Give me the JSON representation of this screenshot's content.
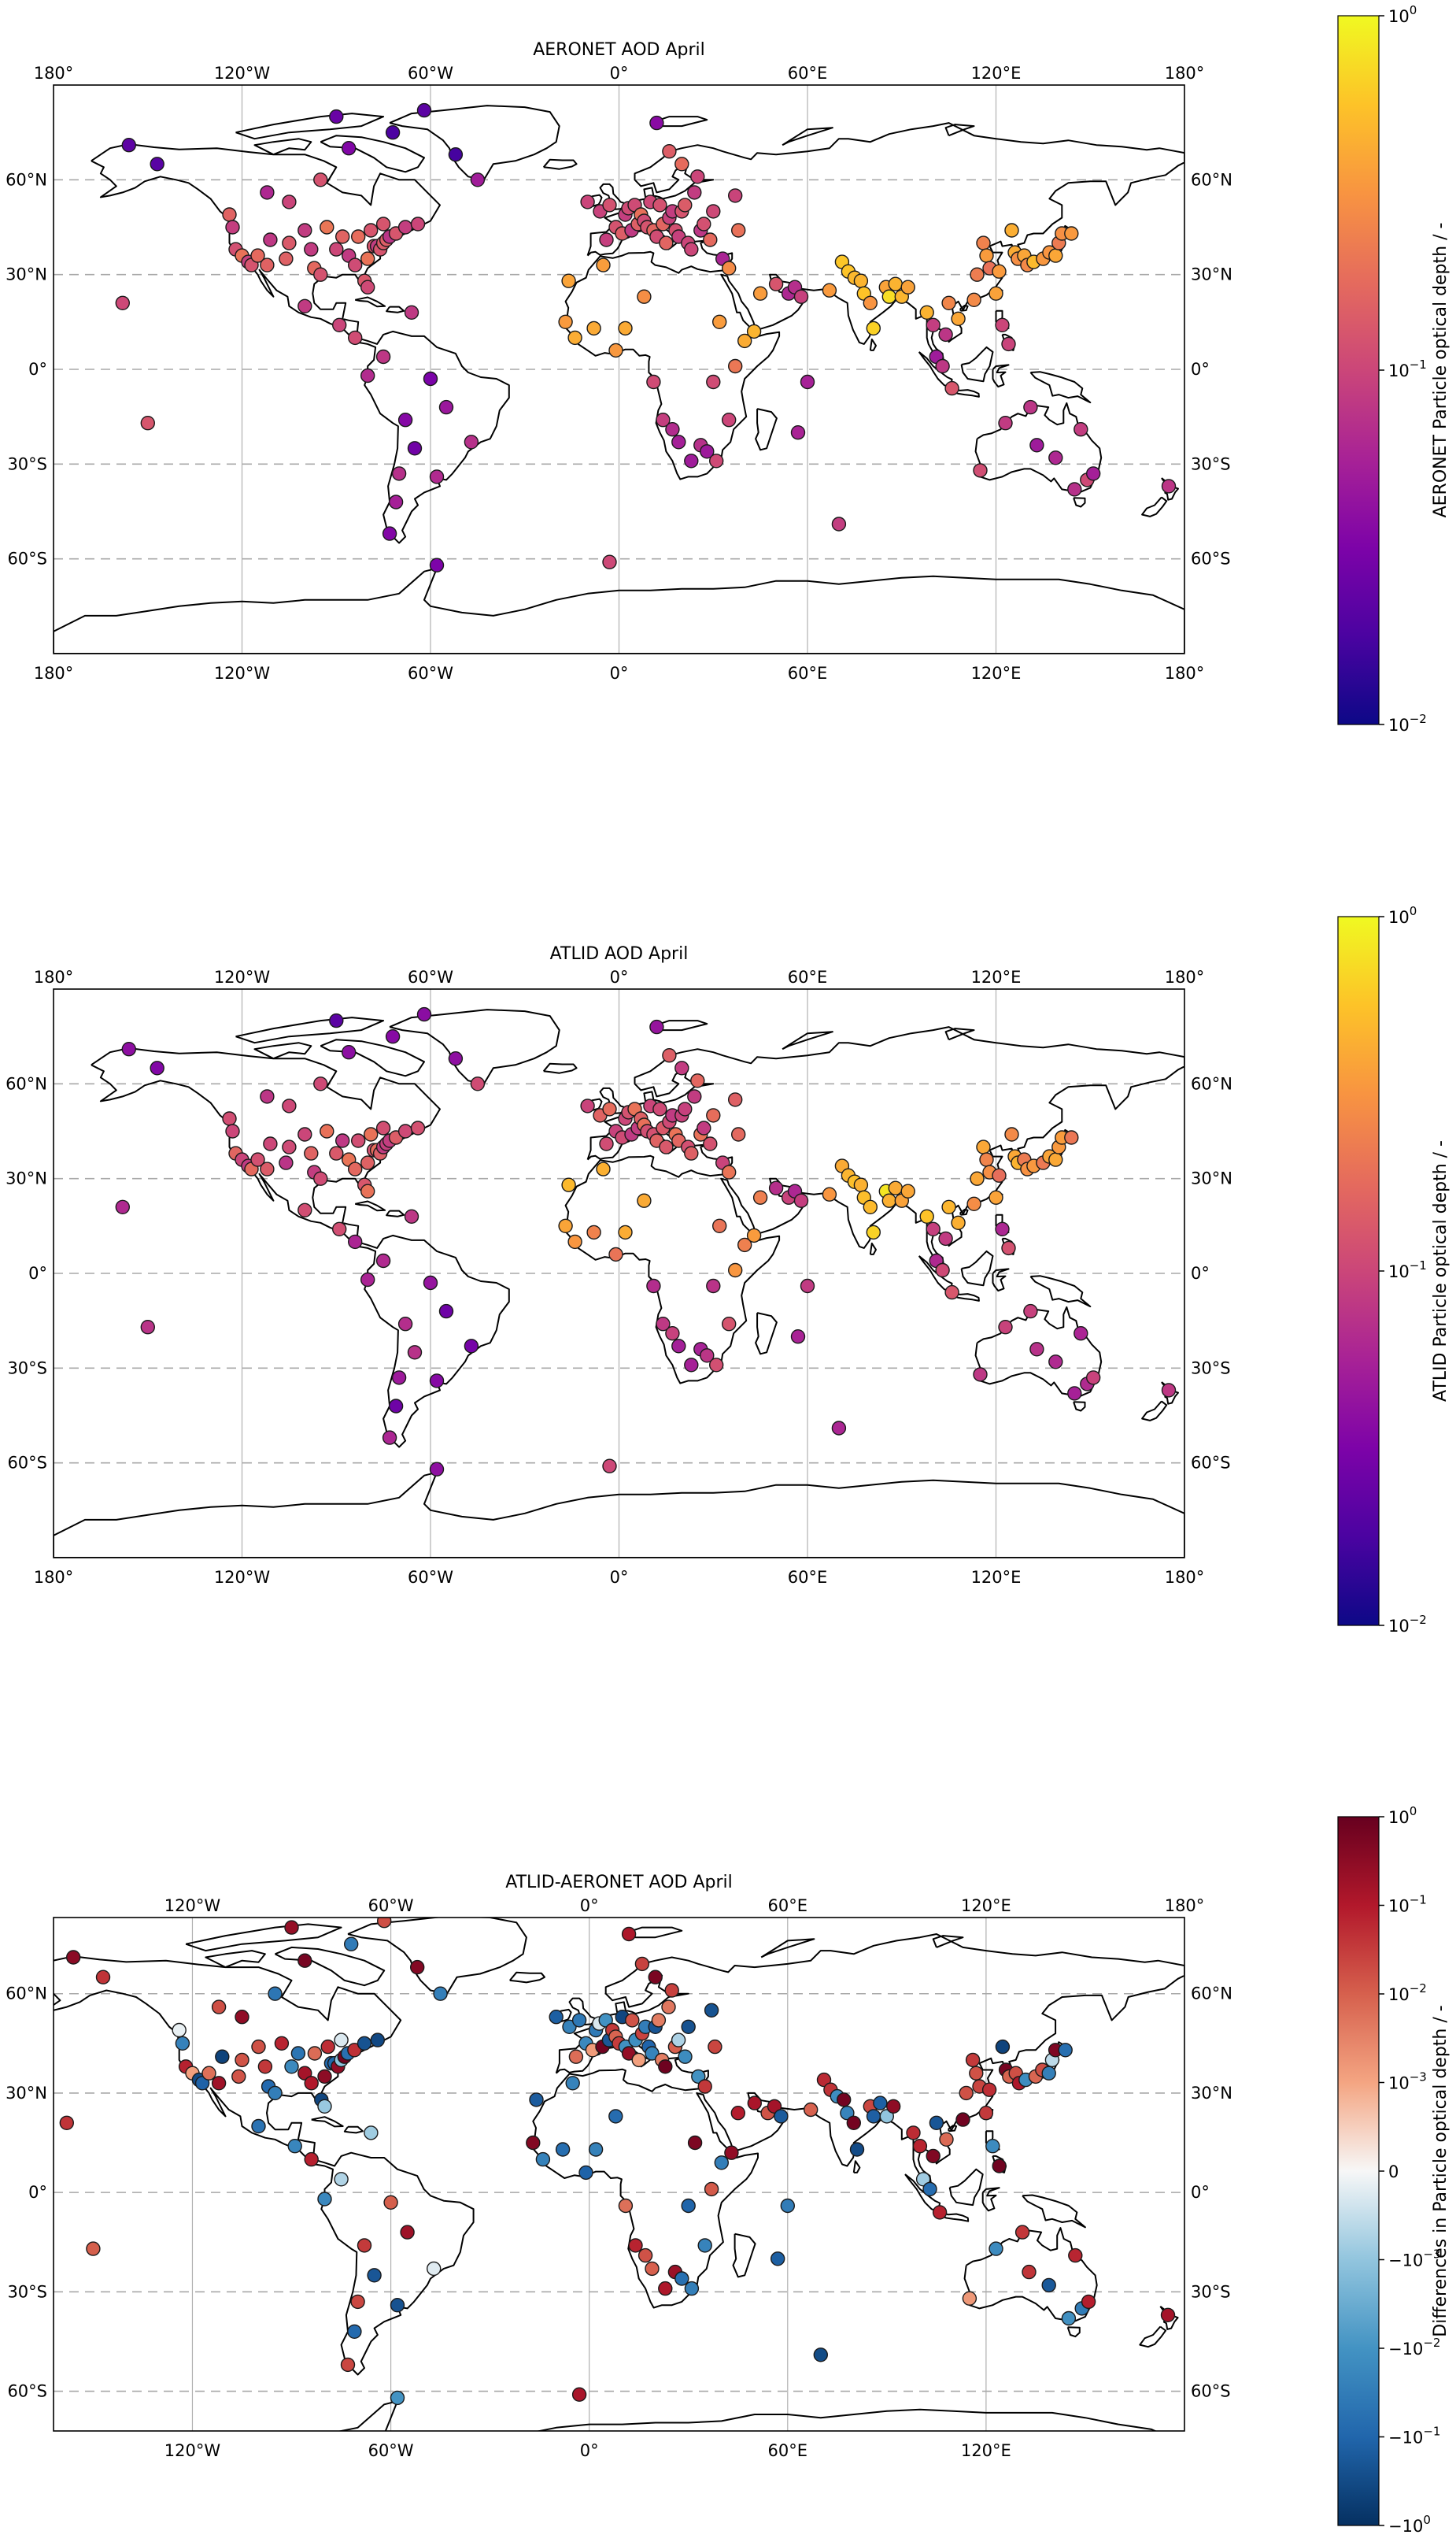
{
  "panels": [
    {
      "id": "aeronet",
      "title": "AERONET AOD April",
      "lon_range": [
        -180,
        180
      ],
      "lat_range": [
        -90,
        90
      ],
      "top_lon_ticks": [
        "180°",
        "120°W",
        "60°W",
        "0°",
        "60°E",
        "120°E",
        "180°"
      ],
      "bottom_lon_ticks": [
        "180°",
        "120°W",
        "60°W",
        "0°",
        "60°E",
        "120°E",
        "180°"
      ],
      "lat_ticks": [
        "60°N",
        "30°N",
        "0°",
        "30°S",
        "60°S"
      ],
      "colorbar": {
        "colormap": "plasma",
        "label": "AERONET Particle optical depth / -",
        "ticks": [
          {
            "base": "10",
            "exp": "0"
          },
          {
            "base": "10",
            "exp": "−1"
          },
          {
            "base": "10",
            "exp": "−2"
          }
        ]
      }
    },
    {
      "id": "atlid",
      "title": "ATLID AOD April",
      "lon_range": [
        -180,
        180
      ],
      "lat_range": [
        -90,
        90
      ],
      "top_lon_ticks": [
        "180°",
        "120°W",
        "60°W",
        "0°",
        "60°E",
        "120°E",
        "180°"
      ],
      "bottom_lon_ticks": [
        "180°",
        "120°W",
        "60°W",
        "0°",
        "60°E",
        "120°E",
        "180°"
      ],
      "lat_ticks": [
        "60°N",
        "30°N",
        "0°",
        "30°S",
        "60°S"
      ],
      "colorbar": {
        "colormap": "plasma",
        "label": "ATLID Particle optical depth / -",
        "ticks": [
          {
            "base": "10",
            "exp": "0"
          },
          {
            "base": "10",
            "exp": "−1"
          },
          {
            "base": "10",
            "exp": "−2"
          }
        ]
      }
    },
    {
      "id": "diff",
      "title": "ATLID-AERONET AOD April",
      "lon_range": [
        -162,
        180
      ],
      "lat_range": [
        -72,
        83
      ],
      "top_lon_ticks": [
        "120°W",
        "60°W",
        "0°",
        "60°E",
        "120°E",
        "180°"
      ],
      "bottom_lon_ticks": [
        "120°W",
        "60°W",
        "0°",
        "60°E",
        "120°E"
      ],
      "lat_ticks": [
        "60°N",
        "30°N",
        "0°",
        "30°S",
        "60°S"
      ],
      "colorbar": {
        "colormap": "RdBu_r",
        "label": "Differences in Particle optical depth / -",
        "ticks": [
          {
            "base": "10",
            "exp": "0"
          },
          {
            "base": "10",
            "exp": "−1"
          },
          {
            "base": "10",
            "exp": "−2"
          },
          {
            "base": "10",
            "exp": "−3"
          },
          {
            "text": "0"
          },
          {
            "base": "−10",
            "exp": "−3"
          },
          {
            "base": "−10",
            "exp": "−2"
          },
          {
            "base": "−10",
            "exp": "−1"
          },
          {
            "base": "−10",
            "exp": "0"
          }
        ]
      }
    }
  ],
  "stations": [
    {
      "lon": -156,
      "lat": 71
    },
    {
      "lon": -147,
      "lat": 65
    },
    {
      "lon": -158,
      "lat": 21
    },
    {
      "lon": -150,
      "lat": -17
    },
    {
      "lon": -124,
      "lat": 49
    },
    {
      "lon": -123,
      "lat": 45
    },
    {
      "lon": -122,
      "lat": 38
    },
    {
      "lon": -120,
      "lat": 36
    },
    {
      "lon": -118,
      "lat": 34
    },
    {
      "lon": -117,
      "lat": 33
    },
    {
      "lon": -115,
      "lat": 36
    },
    {
      "lon": -112,
      "lat": 33
    },
    {
      "lon": -111,
      "lat": 41
    },
    {
      "lon": -106,
      "lat": 35
    },
    {
      "lon": -105,
      "lat": 40
    },
    {
      "lon": -100,
      "lat": 44
    },
    {
      "lon": -98,
      "lat": 38
    },
    {
      "lon": -97,
      "lat": 32
    },
    {
      "lon": -95,
      "lat": 30
    },
    {
      "lon": -93,
      "lat": 45
    },
    {
      "lon": -90,
      "lat": 38
    },
    {
      "lon": -88,
      "lat": 42
    },
    {
      "lon": -86,
      "lat": 36
    },
    {
      "lon": -84,
      "lat": 33
    },
    {
      "lon": -83,
      "lat": 42
    },
    {
      "lon": -81,
      "lat": 28
    },
    {
      "lon": -80,
      "lat": 26
    },
    {
      "lon": -80,
      "lat": 35
    },
    {
      "lon": -78,
      "lat": 39
    },
    {
      "lon": -77,
      "lat": 39
    },
    {
      "lon": -76,
      "lat": 38
    },
    {
      "lon": -75,
      "lat": 40
    },
    {
      "lon": -74,
      "lat": 41
    },
    {
      "lon": -73,
      "lat": 42
    },
    {
      "lon": -71,
      "lat": 43
    },
    {
      "lon": -68,
      "lat": 45
    },
    {
      "lon": -64,
      "lat": 46
    },
    {
      "lon": -66,
      "lat": 18
    },
    {
      "lon": -75,
      "lat": 46
    },
    {
      "lon": -79,
      "lat": 44
    },
    {
      "lon": -112,
      "lat": 56
    },
    {
      "lon": -105,
      "lat": 53
    },
    {
      "lon": -95,
      "lat": 60
    },
    {
      "lon": -90,
      "lat": 80
    },
    {
      "lon": -86,
      "lat": 70
    },
    {
      "lon": -72,
      "lat": 75
    },
    {
      "lon": -62,
      "lat": 82
    },
    {
      "lon": -52,
      "lat": 68
    },
    {
      "lon": -45,
      "lat": 60
    },
    {
      "lon": -100,
      "lat": 20
    },
    {
      "lon": -89,
      "lat": 14
    },
    {
      "lon": -84,
      "lat": 10
    },
    {
      "lon": -75,
      "lat": 4
    },
    {
      "lon": -80,
      "lat": -2
    },
    {
      "lon": -68,
      "lat": -16
    },
    {
      "lon": -65,
      "lat": -25
    },
    {
      "lon": -60,
      "lat": -3
    },
    {
      "lon": -58,
      "lat": -34
    },
    {
      "lon": -70,
      "lat": -33
    },
    {
      "lon": -71,
      "lat": -42
    },
    {
      "lon": -73,
      "lat": -52
    },
    {
      "lon": -58,
      "lat": -62
    },
    {
      "lon": -47,
      "lat": -23
    },
    {
      "lon": -55,
      "lat": -12
    },
    {
      "lon": -10,
      "lat": 53
    },
    {
      "lon": -6,
      "lat": 50
    },
    {
      "lon": -4,
      "lat": 41
    },
    {
      "lon": -3,
      "lat": 52
    },
    {
      "lon": -1,
      "lat": 45
    },
    {
      "lon": 1,
      "lat": 43
    },
    {
      "lon": 2,
      "lat": 49
    },
    {
      "lon": 3,
      "lat": 51
    },
    {
      "lon": 4,
      "lat": 44
    },
    {
      "lon": 5,
      "lat": 52
    },
    {
      "lon": 6,
      "lat": 46
    },
    {
      "lon": 7,
      "lat": 49
    },
    {
      "lon": 8,
      "lat": 47
    },
    {
      "lon": 9,
      "lat": 45
    },
    {
      "lon": 10,
      "lat": 53
    },
    {
      "lon": 11,
      "lat": 44
    },
    {
      "lon": 12,
      "lat": 42
    },
    {
      "lon": 13,
      "lat": 52
    },
    {
      "lon": 14,
      "lat": 46
    },
    {
      "lon": 15,
      "lat": 40
    },
    {
      "lon": 16,
      "lat": 48
    },
    {
      "lon": 17,
      "lat": 50
    },
    {
      "lon": 18,
      "lat": 44
    },
    {
      "lon": 19,
      "lat": 42
    },
    {
      "lon": 20,
      "lat": 50
    },
    {
      "lon": 21,
      "lat": 52
    },
    {
      "lon": 22,
      "lat": 40
    },
    {
      "lon": 23,
      "lat": 38
    },
    {
      "lon": 24,
      "lat": 56
    },
    {
      "lon": 25,
      "lat": 61
    },
    {
      "lon": 26,
      "lat": 44
    },
    {
      "lon": 27,
      "lat": 46
    },
    {
      "lon": 29,
      "lat": 41
    },
    {
      "lon": 30,
      "lat": 50
    },
    {
      "lon": 33,
      "lat": 35
    },
    {
      "lon": 35,
      "lat": 32
    },
    {
      "lon": 37,
      "lat": 55
    },
    {
      "lon": 38,
      "lat": 44
    },
    {
      "lon": 12,
      "lat": 78
    },
    {
      "lon": 16,
      "lat": 69
    },
    {
      "lon": 20,
      "lat": 65
    },
    {
      "lon": -16,
      "lat": 28
    },
    {
      "lon": -17,
      "lat": 15
    },
    {
      "lon": -5,
      "lat": 33
    },
    {
      "lon": -8,
      "lat": 13
    },
    {
      "lon": 2,
      "lat": 13
    },
    {
      "lon": 8,
      "lat": 23
    },
    {
      "lon": -14,
      "lat": 10
    },
    {
      "lon": -1,
      "lat": 6
    },
    {
      "lon": 11,
      "lat": -4
    },
    {
      "lon": 14,
      "lat": -16
    },
    {
      "lon": 17,
      "lat": -19
    },
    {
      "lon": 19,
      "lat": -23
    },
    {
      "lon": 23,
      "lat": -29
    },
    {
      "lon": 26,
      "lat": -24
    },
    {
      "lon": 28,
      "lat": -26
    },
    {
      "lon": 31,
      "lat": -29
    },
    {
      "lon": 35,
      "lat": -16
    },
    {
      "lon": 30,
      "lat": -4
    },
    {
      "lon": 32,
      "lat": 15
    },
    {
      "lon": 37,
      "lat": 1
    },
    {
      "lon": 40,
      "lat": 9
    },
    {
      "lon": 43,
      "lat": 12
    },
    {
      "lon": 45,
      "lat": 24
    },
    {
      "lon": 50,
      "lat": 27
    },
    {
      "lon": 54,
      "lat": 24
    },
    {
      "lon": 56,
      "lat": 26
    },
    {
      "lon": 58,
      "lat": 23
    },
    {
      "lon": 60,
      "lat": -4
    },
    {
      "lon": 57,
      "lat": -20
    },
    {
      "lon": 67,
      "lat": 25
    },
    {
      "lon": 71,
      "lat": 34
    },
    {
      "lon": 73,
      "lat": 31
    },
    {
      "lon": 75,
      "lat": 29
    },
    {
      "lon": 77,
      "lat": 28
    },
    {
      "lon": 78,
      "lat": 24
    },
    {
      "lon": 80,
      "lat": 21
    },
    {
      "lon": 81,
      "lat": 13
    },
    {
      "lon": 85,
      "lat": 26
    },
    {
      "lon": 86,
      "lat": 23
    },
    {
      "lon": 88,
      "lat": 27
    },
    {
      "lon": 90,
      "lat": 23
    },
    {
      "lon": 92,
      "lat": 26
    },
    {
      "lon": 98,
      "lat": 18
    },
    {
      "lon": 100,
      "lat": 14
    },
    {
      "lon": 101,
      "lat": 4
    },
    {
      "lon": 103,
      "lat": 1
    },
    {
      "lon": 104,
      "lat": 11
    },
    {
      "lon": 105,
      "lat": 21
    },
    {
      "lon": 106,
      "lat": -6
    },
    {
      "lon": 108,
      "lat": 16
    },
    {
      "lon": 113,
      "lat": 22
    },
    {
      "lon": 114,
      "lat": 30
    },
    {
      "lon": 116,
      "lat": 40
    },
    {
      "lon": 117,
      "lat": 36
    },
    {
      "lon": 118,
      "lat": 32
    },
    {
      "lon": 120,
      "lat": 24
    },
    {
      "lon": 121,
      "lat": 31
    },
    {
      "lon": 122,
      "lat": 14
    },
    {
      "lon": 124,
      "lat": 8
    },
    {
      "lon": 125,
      "lat": 44
    },
    {
      "lon": 126,
      "lat": 37
    },
    {
      "lon": 127,
      "lat": 35
    },
    {
      "lon": 129,
      "lat": 36
    },
    {
      "lon": 130,
      "lat": 33
    },
    {
      "lon": 132,
      "lat": 34
    },
    {
      "lon": 135,
      "lat": 35
    },
    {
      "lon": 137,
      "lat": 37
    },
    {
      "lon": 139,
      "lat": 36
    },
    {
      "lon": 140,
      "lat": 40
    },
    {
      "lon": 141,
      "lat": 43
    },
    {
      "lon": 144,
      "lat": 43
    },
    {
      "lon": 115,
      "lat": -32
    },
    {
      "lon": 123,
      "lat": -17
    },
    {
      "lon": 131,
      "lat": -12
    },
    {
      "lon": 133,
      "lat": -24
    },
    {
      "lon": 147,
      "lat": -19
    },
    {
      "lon": 149,
      "lat": -35
    },
    {
      "lon": 151,
      "lat": -33
    },
    {
      "lon": 145,
      "lat": -38
    },
    {
      "lon": 175,
      "lat": -37
    },
    {
      "lon": 139,
      "lat": -28
    },
    {
      "lon": -3,
      "lat": -61
    },
    {
      "lon": 70,
      "lat": -49
    }
  ]
}
